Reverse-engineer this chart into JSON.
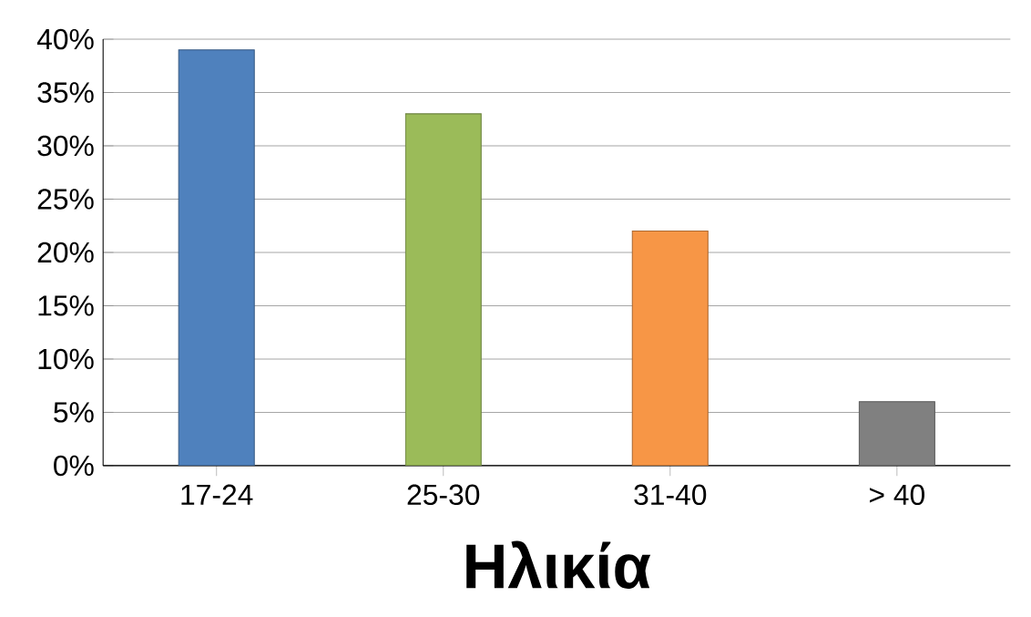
{
  "chart_data": {
    "type": "bar",
    "xlabel": "Ηλικία",
    "categories": [
      "17-24",
      "25-30",
      "31-40",
      "> 40"
    ],
    "values": [
      39,
      33,
      22,
      6
    ],
    "colors": [
      "#4f81bd",
      "#9bbb59",
      "#f79646",
      "#808080"
    ],
    "ylim": [
      0,
      40
    ],
    "yticks": [
      {
        "value": 0,
        "label": "0%"
      },
      {
        "value": 5,
        "label": "5%"
      },
      {
        "value": 10,
        "label": "10%"
      },
      {
        "value": 15,
        "label": "15%"
      },
      {
        "value": 20,
        "label": "20%"
      },
      {
        "value": 25,
        "label": "25%"
      },
      {
        "value": 30,
        "label": "30%"
      },
      {
        "value": 35,
        "label": "35%"
      },
      {
        "value": 40,
        "label": "40%"
      }
    ],
    "grid": "y"
  }
}
